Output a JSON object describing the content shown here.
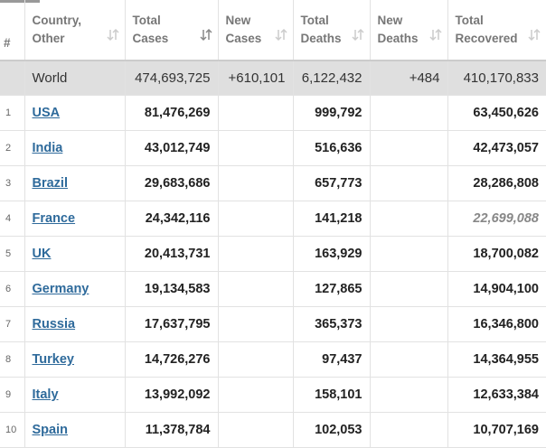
{
  "header": {
    "columns": [
      [
        "#"
      ],
      [
        "Country,",
        "Other"
      ],
      [
        "Total",
        "Cases"
      ],
      [
        "New",
        "Cases"
      ],
      [
        "Total",
        "Deaths"
      ],
      [
        "New",
        "Deaths"
      ],
      [
        "Total",
        "Recovered"
      ]
    ]
  },
  "table": {
    "world": [
      null,
      "World",
      "474,693,725",
      "+610,101",
      "6,122,432",
      "+484",
      "410,170,833"
    ],
    "rows": [
      [
        1,
        "USA",
        "81,476,269",
        null,
        "999,792",
        null,
        "63,450,626"
      ],
      [
        2,
        "India",
        "43,012,749",
        null,
        "516,636",
        null,
        "42,473,057"
      ],
      [
        3,
        "Brazil",
        "29,683,686",
        null,
        "657,773",
        null,
        "28,286,808"
      ],
      [
        4,
        "France",
        "24,342,116",
        null,
        "141,218",
        null,
        "22,699,088"
      ],
      [
        5,
        "UK",
        "20,413,731",
        null,
        "163,929",
        null,
        "18,700,082"
      ],
      [
        6,
        "Germany",
        "19,134,583",
        null,
        "127,865",
        null,
        "14,904,100"
      ],
      [
        7,
        "Russia",
        "17,637,795",
        null,
        "365,373",
        null,
        "16,346,800"
      ],
      [
        8,
        "Turkey",
        "14,726,276",
        null,
        "97,437",
        null,
        "14,364,955"
      ],
      [
        9,
        "Italy",
        "13,992,092",
        null,
        "158,101",
        null,
        "12,633,384"
      ],
      [
        10,
        "Spain",
        "11,378,784",
        null,
        "102,053",
        null,
        "10,707,169"
      ]
    ]
  }
}
